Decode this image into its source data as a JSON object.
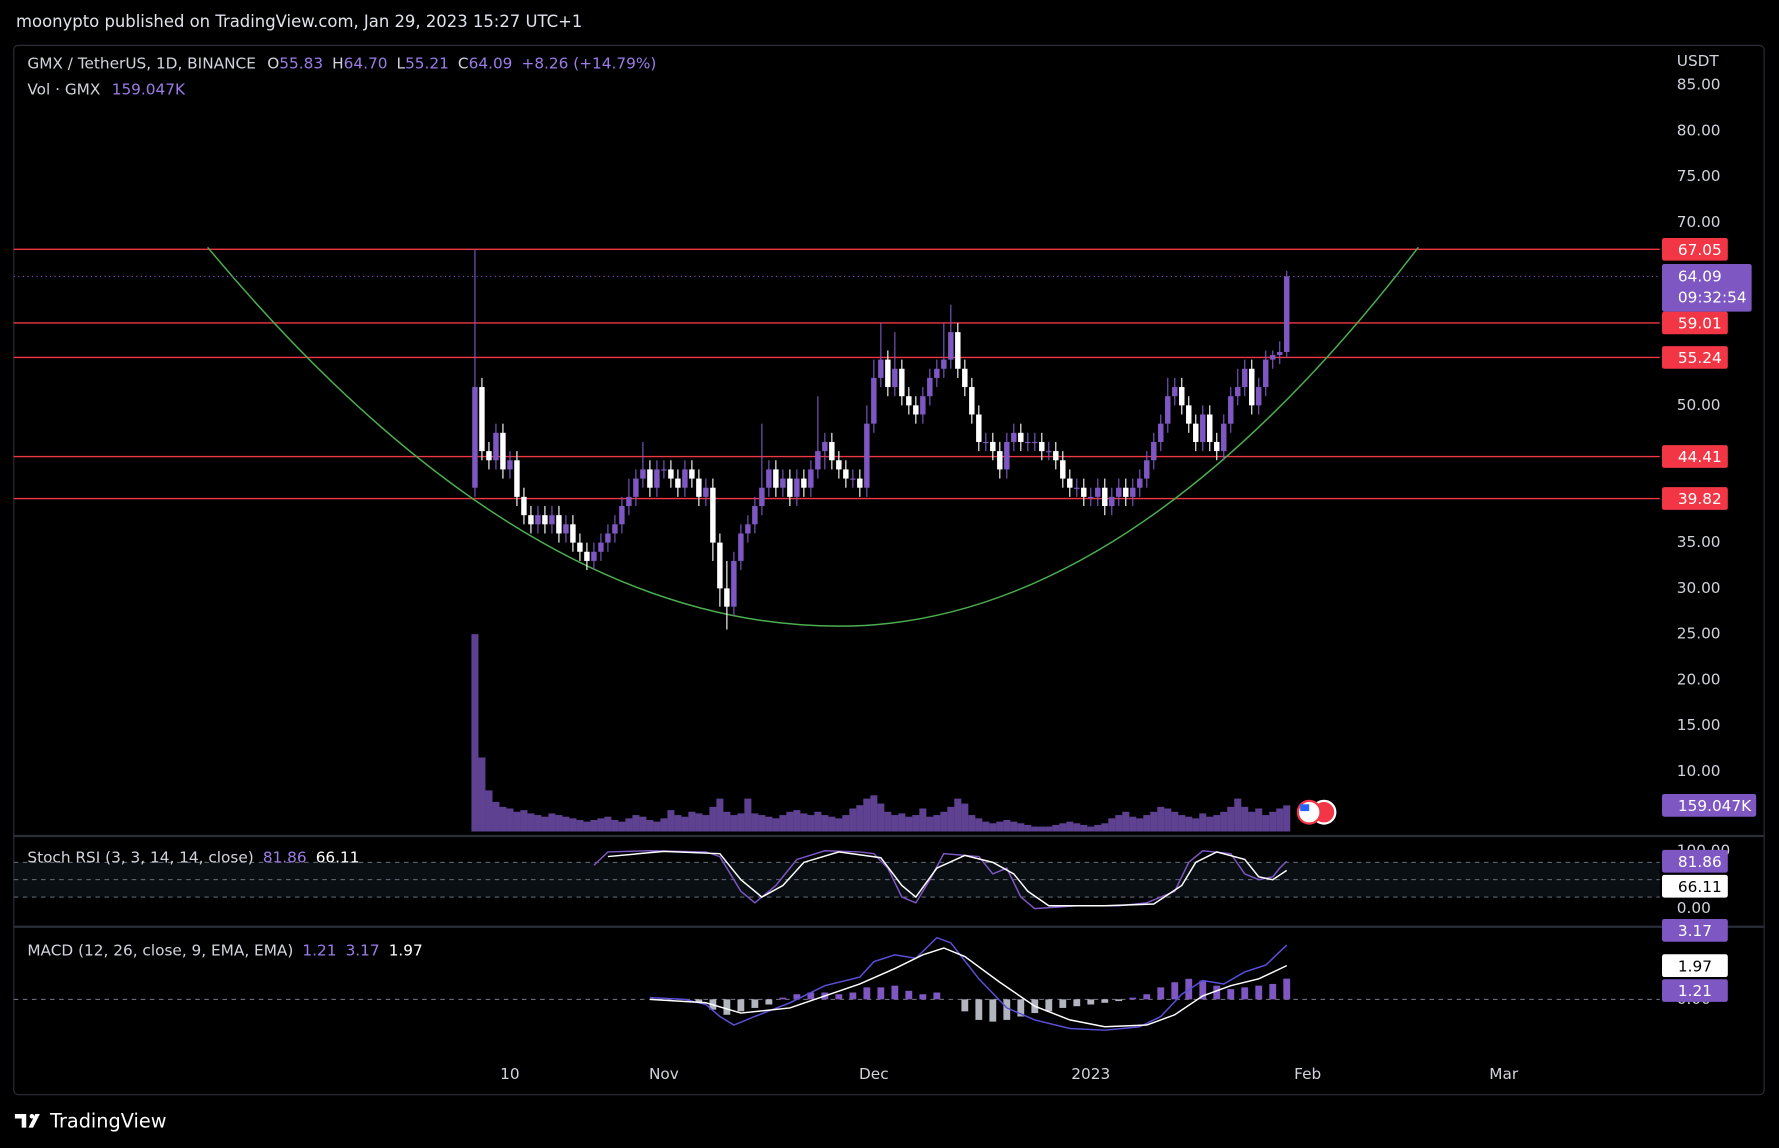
{
  "header": {
    "text": "moonypto published on TradingView.com, Jan 29, 2023 15:27 UTC+1"
  },
  "footer": {
    "brand": "TradingView"
  },
  "chart_data": [
    {
      "type": "candlestick",
      "title": "GMX / TetherUS, 1D, BINANCE",
      "legend": [
        {
          "key": "O",
          "text": "55.83"
        },
        {
          "key": "H",
          "text": "64.70"
        },
        {
          "key": "L",
          "text": "55.21"
        },
        {
          "key": "C",
          "text": "64.09"
        }
      ],
      "change": "+8.26 (+14.79%)",
      "currency": "USDT",
      "countdown": "09:32:54",
      "open": [
        41,
        52,
        45,
        44,
        47,
        43,
        44,
        40,
        38,
        37,
        38,
        37,
        38,
        36,
        37,
        35,
        34,
        33,
        34,
        35,
        36,
        37,
        39,
        40,
        42,
        43,
        41,
        43,
        43,
        42,
        41,
        43,
        42,
        40,
        41,
        35,
        30,
        28,
        33,
        36,
        37,
        39,
        41,
        43,
        41,
        42,
        40,
        42,
        41,
        43,
        45,
        46,
        44,
        43,
        42,
        42,
        41,
        48,
        53,
        55,
        52,
        54,
        51,
        50,
        49,
        51,
        53,
        54,
        55,
        58,
        54,
        52,
        49,
        46,
        46,
        45,
        43,
        46,
        47,
        46,
        46,
        46,
        45,
        45,
        44,
        42,
        41,
        41,
        40,
        40,
        41,
        39,
        40,
        41,
        40,
        41,
        42,
        44,
        46,
        48,
        51,
        52,
        50,
        48,
        46,
        49,
        46,
        45,
        48,
        51,
        52,
        54,
        50,
        52,
        55,
        55.5,
        55.83
      ],
      "high": [
        67,
        53,
        46,
        48,
        48,
        45,
        45,
        41,
        39,
        39,
        39,
        39,
        39,
        38,
        38,
        36,
        35,
        35,
        36,
        37,
        38,
        40,
        42,
        43,
        46,
        44,
        44,
        44,
        44,
        43,
        44,
        44,
        43,
        42,
        42,
        36,
        33,
        34,
        37,
        38,
        40,
        48,
        44,
        44,
        43,
        43,
        43,
        43,
        44,
        51,
        47,
        47,
        45,
        44,
        43,
        43,
        50,
        55,
        59,
        56,
        58,
        55,
        52,
        51,
        52,
        54,
        55,
        59,
        61,
        59,
        55,
        53,
        50,
        47,
        47,
        46,
        47,
        48,
        48,
        47,
        47,
        47,
        46,
        46,
        45,
        43,
        42,
        42,
        41,
        42,
        42,
        41,
        42,
        42,
        42,
        43,
        45,
        47,
        49,
        53,
        53,
        53,
        51,
        49,
        50,
        50,
        47,
        49,
        52,
        54,
        55,
        55,
        53,
        56,
        56,
        57,
        64.7
      ],
      "low": [
        40,
        44,
        43,
        43,
        42,
        42,
        39,
        37,
        36,
        36,
        36,
        36,
        35,
        35,
        34,
        33,
        32,
        32,
        33,
        34,
        35,
        36,
        38,
        39,
        41,
        40,
        40,
        42,
        41,
        40,
        40,
        41,
        39,
        39,
        33,
        28,
        25.5,
        27,
        32,
        35,
        36,
        38,
        40,
        40,
        40,
        39,
        39,
        40,
        40,
        42,
        43,
        43,
        42,
        41,
        41,
        40,
        40,
        47,
        52,
        51,
        51,
        50,
        49,
        48,
        48,
        50,
        52,
        53,
        54,
        53,
        51,
        48,
        45,
        45,
        44,
        42,
        42,
        45,
        45,
        45,
        45,
        44,
        44,
        43,
        41,
        40,
        40,
        39,
        39,
        39,
        38,
        38,
        39,
        39,
        39,
        40,
        41,
        43,
        45,
        47,
        50,
        49,
        47,
        45,
        45,
        45,
        44,
        44,
        47,
        50,
        51,
        49,
        49,
        51,
        54,
        54.5,
        55.21
      ],
      "close": [
        52,
        45,
        44,
        47,
        43,
        44,
        40,
        38,
        37,
        38,
        37,
        38,
        36,
        37,
        35,
        34,
        33,
        34,
        35,
        36,
        37,
        39,
        40,
        42,
        43,
        41,
        43,
        43,
        42,
        41,
        43,
        42,
        40,
        41,
        35,
        30,
        28,
        33,
        36,
        37,
        39,
        41,
        43,
        41,
        42,
        40,
        42,
        41,
        43,
        45,
        46,
        44,
        43,
        42,
        42,
        41,
        48,
        53,
        55,
        52,
        54,
        51,
        50,
        49,
        51,
        53,
        54,
        55,
        58,
        54,
        52,
        49,
        46,
        46,
        45,
        43,
        46,
        47,
        46,
        46,
        46,
        45,
        45,
        44,
        42,
        41,
        41,
        40,
        40,
        41,
        39,
        40,
        41,
        40,
        41,
        42,
        44,
        46,
        48,
        51,
        52,
        50,
        48,
        46,
        49,
        46,
        45,
        48,
        51,
        52,
        54,
        50,
        52,
        55,
        55.5,
        55.83,
        64.09
      ],
      "up_color": "#7e57c2",
      "down_color": "#ffffff",
      "grid": false,
      "xlim": [
        -65.9,
        169.3
      ],
      "xticks": [
        {
          "value": 5,
          "label": "10"
        },
        {
          "value": 27,
          "label": "Nov"
        },
        {
          "value": 57,
          "label": "Dec"
        },
        {
          "value": 88,
          "label": "2023"
        },
        {
          "value": 119,
          "label": "Feb"
        },
        {
          "value": 147,
          "label": "Mar"
        }
      ],
      "ylim": [
        3.43,
        89.34
      ],
      "yticks": [
        {
          "value": 10,
          "label": "10.00"
        },
        {
          "value": 15,
          "label": "15.00"
        },
        {
          "value": 20,
          "label": "20.00"
        },
        {
          "value": 25,
          "label": "25.00"
        },
        {
          "value": 30,
          "label": "30.00"
        },
        {
          "value": 35,
          "label": "35.00"
        },
        {
          "value": 50,
          "label": "50.00"
        },
        {
          "value": 70,
          "label": "70.00"
        },
        {
          "value": 75,
          "label": "75.00"
        },
        {
          "value": 80,
          "label": "80.00"
        },
        {
          "value": 85,
          "label": "85.00"
        }
      ],
      "levels": {
        "color": "#f23645",
        "values": [
          67.05,
          59.01,
          55.24,
          44.41,
          39.82
        ]
      },
      "cup": {
        "color": "#4caf50",
        "x": [
          -38.2,
          52,
          134.8
        ],
        "y": [
          67.27,
          25.87,
          67.27
        ]
      }
    },
    {
      "type": "volume",
      "title": "Vol · GMX",
      "color": "#7e57c2",
      "ylim": [
        0,
        1200
      ],
      "last_label": "159.047K",
      "values": [
        1200,
        450,
        250,
        180,
        150,
        140,
        120,
        130,
        110,
        100,
        90,
        110,
        100,
        90,
        80,
        70,
        60,
        70,
        80,
        90,
        70,
        60,
        80,
        100,
        90,
        70,
        60,
        80,
        130,
        100,
        90,
        120,
        110,
        100,
        150,
        200,
        120,
        100,
        110,
        200,
        110,
        100,
        90,
        80,
        100,
        120,
        130,
        110,
        100,
        120,
        100,
        90,
        80,
        100,
        140,
        160,
        200,
        220,
        170,
        120,
        100,
        110,
        90,
        100,
        140,
        90,
        100,
        120,
        150,
        200,
        170,
        100,
        80,
        60,
        50,
        60,
        70,
        60,
        50,
        40,
        30,
        30,
        30,
        40,
        50,
        60,
        50,
        40,
        30,
        40,
        50,
        80,
        100,
        120,
        90,
        80,
        100,
        120,
        150,
        140,
        120,
        100,
        90,
        80,
        110,
        90,
        100,
        120,
        150,
        200,
        150,
        120,
        140,
        100,
        120,
        140,
        159.047
      ]
    },
    {
      "type": "stoch_rsi",
      "title": "Stoch RSI (3, 3, 14, 14, close)",
      "ylim": [
        -27.5,
        119.6
      ],
      "yticks": [
        {
          "value": 0,
          "label": "0.00"
        },
        {
          "value": 100,
          "label": "100.00"
        }
      ],
      "bands": [
        80,
        50,
        20
      ],
      "series": [
        {
          "color": "#7e57c2",
          "x": [
            17,
            19,
            25,
            33,
            35,
            38,
            40,
            43,
            46,
            50,
            55,
            57,
            59,
            61,
            63,
            65,
            67,
            72,
            74,
            76,
            78,
            80,
            86,
            92,
            96,
            100,
            102,
            104,
            108,
            110,
            112,
            114,
            115,
            116
          ],
          "values": [
            75,
            98,
            100,
            98,
            90,
            30,
            10,
            40,
            85,
            100,
            98,
            95,
            70,
            20,
            10,
            50,
            95,
            90,
            60,
            70,
            20,
            0,
            5,
            5,
            10,
            30,
            80,
            100,
            95,
            60,
            50,
            55,
            70,
            81.86
          ]
        },
        {
          "color": "#ffffff",
          "x": [
            19,
            27,
            35,
            38,
            41,
            44,
            47,
            52,
            58,
            61,
            63,
            66,
            70,
            74,
            77,
            79,
            82,
            90,
            97,
            101,
            103,
            106,
            110,
            112,
            114,
            116
          ],
          "values": [
            90,
            99,
            95,
            50,
            20,
            40,
            80,
            98,
            88,
            40,
            20,
            70,
            92,
            80,
            60,
            30,
            5,
            5,
            8,
            40,
            80,
            98,
            85,
            55,
            50,
            66.11
          ]
        }
      ]
    },
    {
      "type": "macd",
      "title": "MACD (12, 26, close, 9, EMA, EMA)",
      "ylim": [
        -3.58,
        4.04
      ],
      "yticks": [
        {
          "value": 0,
          "label": "0.00"
        }
      ],
      "histogram": {
        "up_color": "#7e57c2",
        "down_color": "#b2b5be",
        "x": [
          32,
          34,
          36,
          38,
          40,
          42,
          44,
          46,
          48,
          50,
          52,
          54,
          56,
          58,
          60,
          62,
          64,
          66,
          68,
          70,
          72,
          74,
          76,
          78,
          80,
          82,
          84,
          86,
          88,
          90,
          92,
          94,
          96,
          98,
          100,
          102,
          104,
          106,
          108,
          110,
          112,
          114,
          116
        ],
        "values": [
          -0.2,
          -0.6,
          -0.9,
          -0.7,
          -0.5,
          -0.3,
          0.1,
          0.3,
          0.4,
          0.4,
          0.3,
          0.4,
          0.7,
          0.7,
          0.8,
          0.5,
          0.3,
          0.4,
          0,
          -0.7,
          -1.2,
          -1.3,
          -1.2,
          -1.0,
          -0.8,
          -0.7,
          -0.5,
          -0.4,
          -0.3,
          -0.2,
          -0.1,
          0.1,
          0.3,
          0.7,
          1.0,
          1.2,
          1.1,
          0.8,
          0.6,
          0.7,
          0.8,
          0.9,
          1.21
        ]
      },
      "series": [
        {
          "color": "#5b4fd9",
          "x": [
            25,
            30,
            33,
            35,
            37,
            40,
            45,
            50,
            55,
            57,
            60,
            63,
            66,
            68,
            72,
            76,
            80,
            85,
            90,
            95,
            98,
            101,
            104,
            107,
            110,
            113,
            116
          ],
          "values": [
            0.1,
            0,
            -0.3,
            -1,
            -1.5,
            -1,
            -0.2,
            0.8,
            1.3,
            2.2,
            2.6,
            2.4,
            3.6,
            3.3,
            1.2,
            -0.5,
            -1.2,
            -1.7,
            -1.8,
            -1.6,
            -1.0,
            0.3,
            1.1,
            0.9,
            1.6,
            2.0,
            3.17
          ]
        },
        {
          "color": "#ffffff",
          "x": [
            25,
            33,
            38,
            45,
            50,
            55,
            60,
            64,
            67,
            70,
            75,
            80,
            85,
            90,
            96,
            100,
            104,
            108,
            112,
            116
          ],
          "values": [
            0,
            -0.2,
            -0.8,
            -0.5,
            0.2,
            0.9,
            1.8,
            2.6,
            3.0,
            2.5,
            1.0,
            -0.4,
            -1.2,
            -1.6,
            -1.5,
            -0.9,
            0.2,
            0.8,
            1.2,
            1.97
          ]
        }
      ]
    }
  ]
}
